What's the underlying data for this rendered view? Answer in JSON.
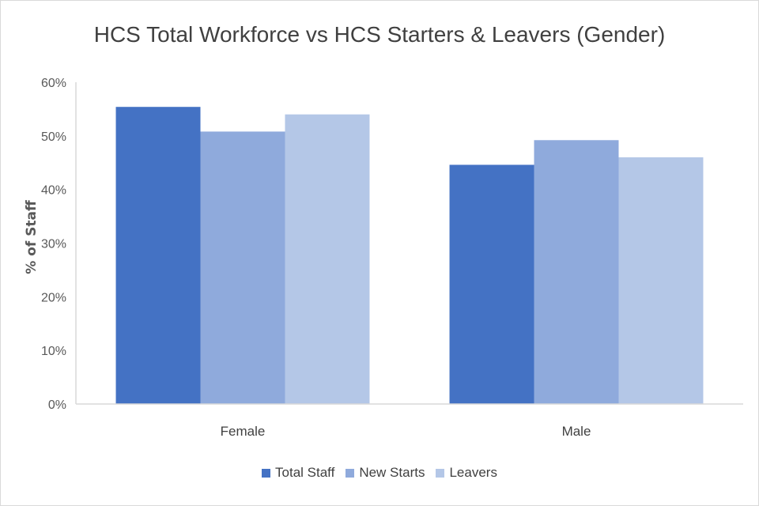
{
  "chart_data": {
    "type": "bar",
    "title": "HCS Total Workforce vs HCS Starters & Leavers (Gender)",
    "xlabel": "",
    "ylabel": "% of Staff",
    "categories": [
      "Female",
      "Male"
    ],
    "series": [
      {
        "name": "Total Staff",
        "values": [
          55.4,
          44.6
        ],
        "color": "#4472c4"
      },
      {
        "name": "New Starts",
        "values": [
          50.8,
          49.2
        ],
        "color": "#8faadc"
      },
      {
        "name": "Leavers",
        "values": [
          54.0,
          46.0
        ],
        "color": "#b4c7e7"
      }
    ],
    "ylim": [
      0,
      60
    ],
    "yticks": [
      "0%",
      "10%",
      "20%",
      "30%",
      "40%",
      "50%",
      "60%"
    ],
    "grid": false,
    "legend": "bottom"
  }
}
